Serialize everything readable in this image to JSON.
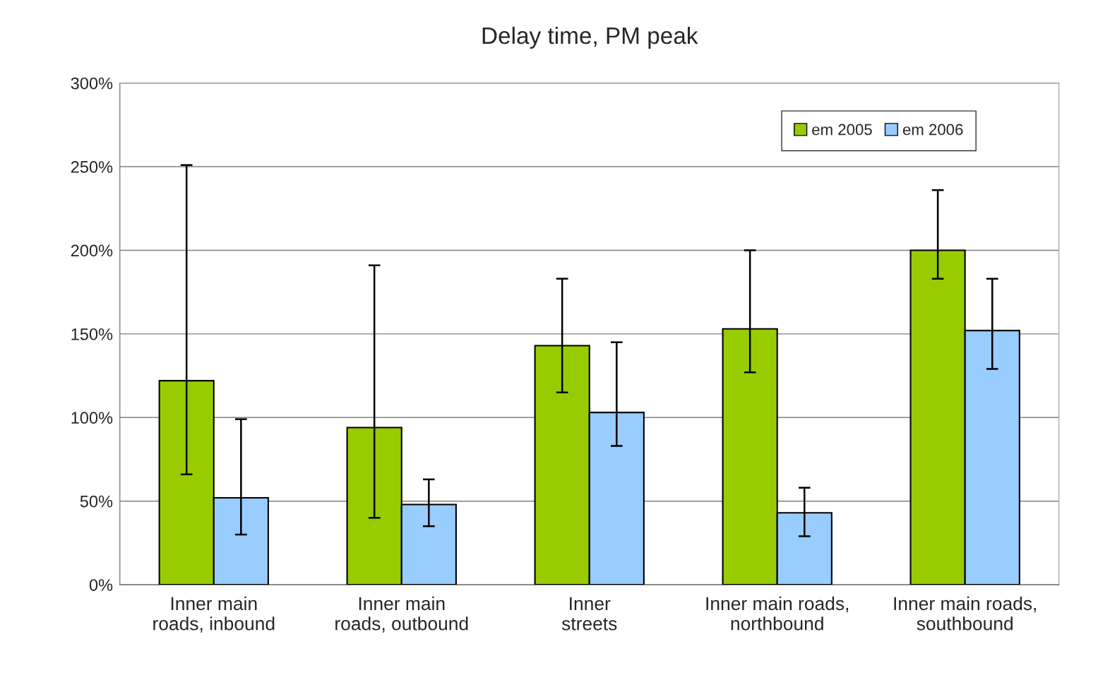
{
  "chart_data": {
    "type": "bar",
    "title": "Delay time, PM peak",
    "categories": [
      "Inner main\nroads, inbound",
      "Inner main\nroads, outbound",
      "Inner\nstreets",
      "Inner main roads,\nnorthbound",
      "Inner main roads,\nsouthbound"
    ],
    "series": [
      {
        "name": "em 2005",
        "color": "#99cc00",
        "values": [
          122,
          94,
          143,
          153,
          200
        ],
        "errors": [
          [
            66,
            251
          ],
          [
            40,
            191
          ],
          [
            115,
            183
          ],
          [
            127,
            200
          ],
          [
            183,
            236
          ]
        ]
      },
      {
        "name": "em 2006",
        "color": "#99ccff",
        "values": [
          52,
          48,
          103,
          43,
          152
        ],
        "errors": [
          [
            30,
            99
          ],
          [
            35,
            63
          ],
          [
            83,
            145
          ],
          [
            29,
            58
          ],
          [
            129,
            183
          ]
        ]
      }
    ],
    "ylim": [
      0,
      300
    ],
    "yticks": [
      {
        "value": 0,
        "label": "0%"
      },
      {
        "value": 50,
        "label": "50%"
      },
      {
        "value": 100,
        "label": "100%"
      },
      {
        "value": 150,
        "label": "150%"
      },
      {
        "value": 200,
        "label": "200%"
      },
      {
        "value": 250,
        "label": "250%"
      },
      {
        "value": 300,
        "label": "300%"
      }
    ],
    "grid": "y",
    "legend": "top right"
  }
}
